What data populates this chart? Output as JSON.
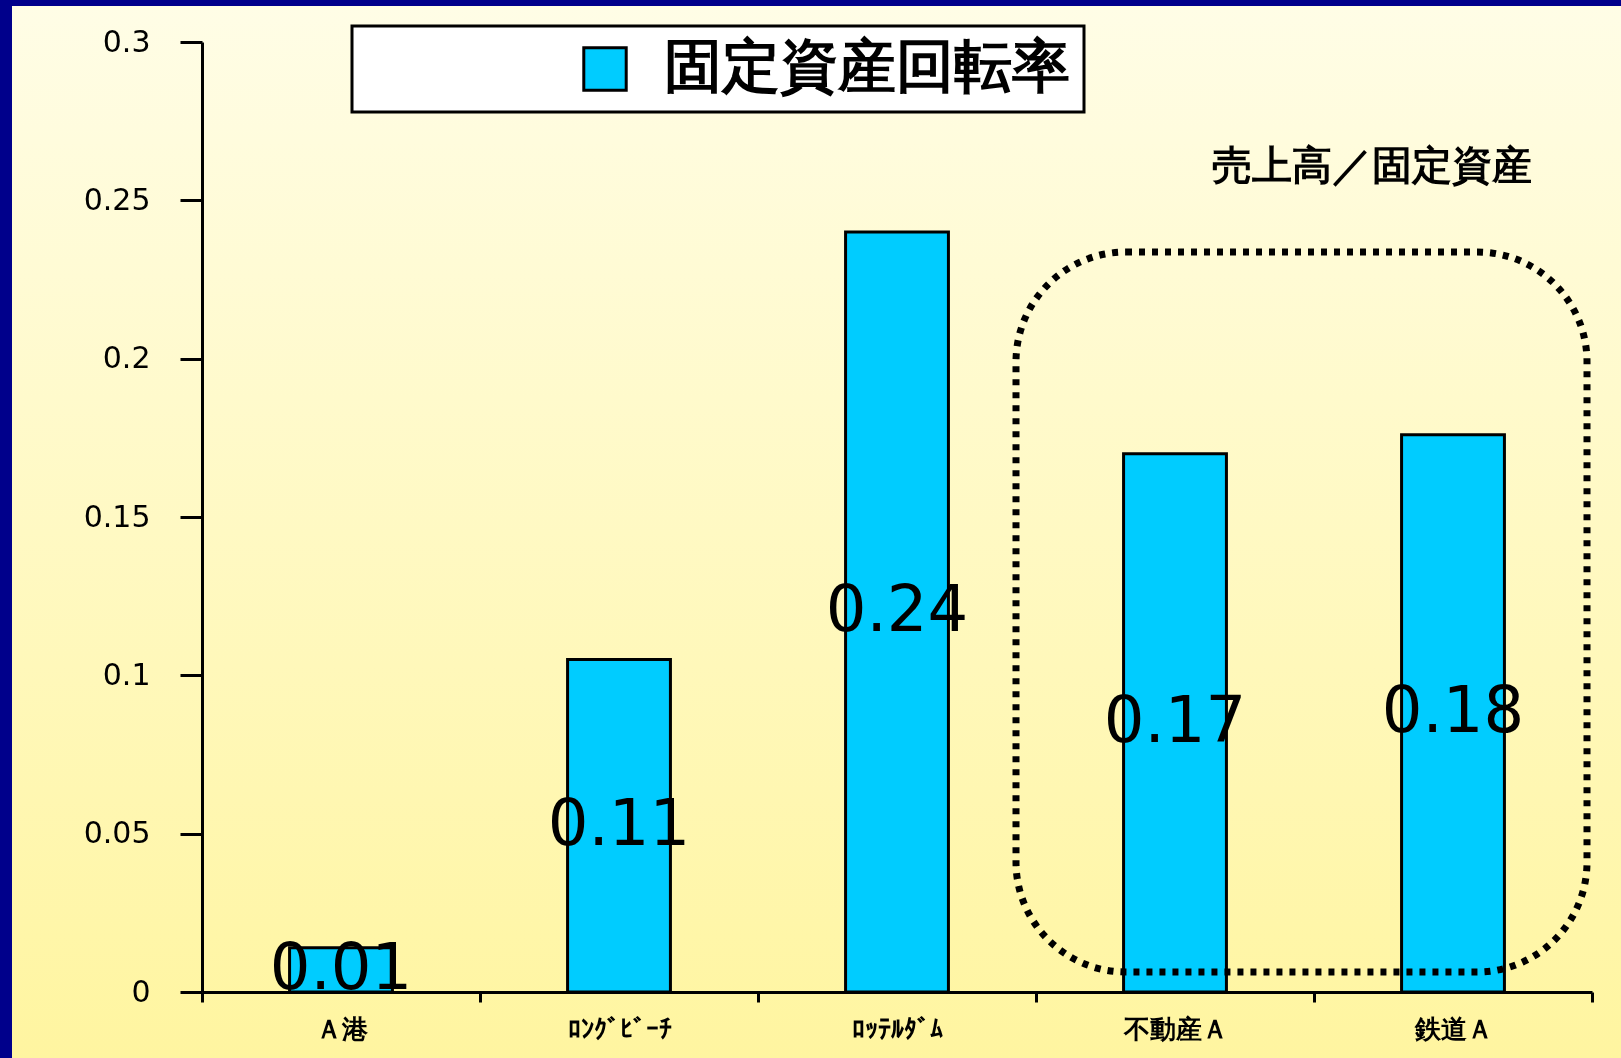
{
  "chart_data": {
    "type": "bar",
    "categories": [
      "Ａ港",
      "ﾛﾝｸﾞﾋﾞｰﾁ",
      "ﾛｯﾃﾙﾀﾞﾑ",
      "不動産Ａ",
      "鉄道Ａ"
    ],
    "series": [
      {
        "name": "固定資産回転率",
        "color": "#00ccff",
        "values": [
          0.014,
          0.105,
          0.24,
          0.17,
          0.176
        ],
        "value_labels": [
          "0.01",
          "0.11",
          "0.24",
          "0.17",
          "0.18"
        ]
      }
    ],
    "ylim": [
      0,
      0.3
    ],
    "yticks": [
      0,
      0.05,
      0.1,
      0.15,
      0.2,
      0.25,
      0.3
    ],
    "grid": false,
    "legend": "top",
    "annotations": [
      "売上高／固定資産"
    ]
  }
}
